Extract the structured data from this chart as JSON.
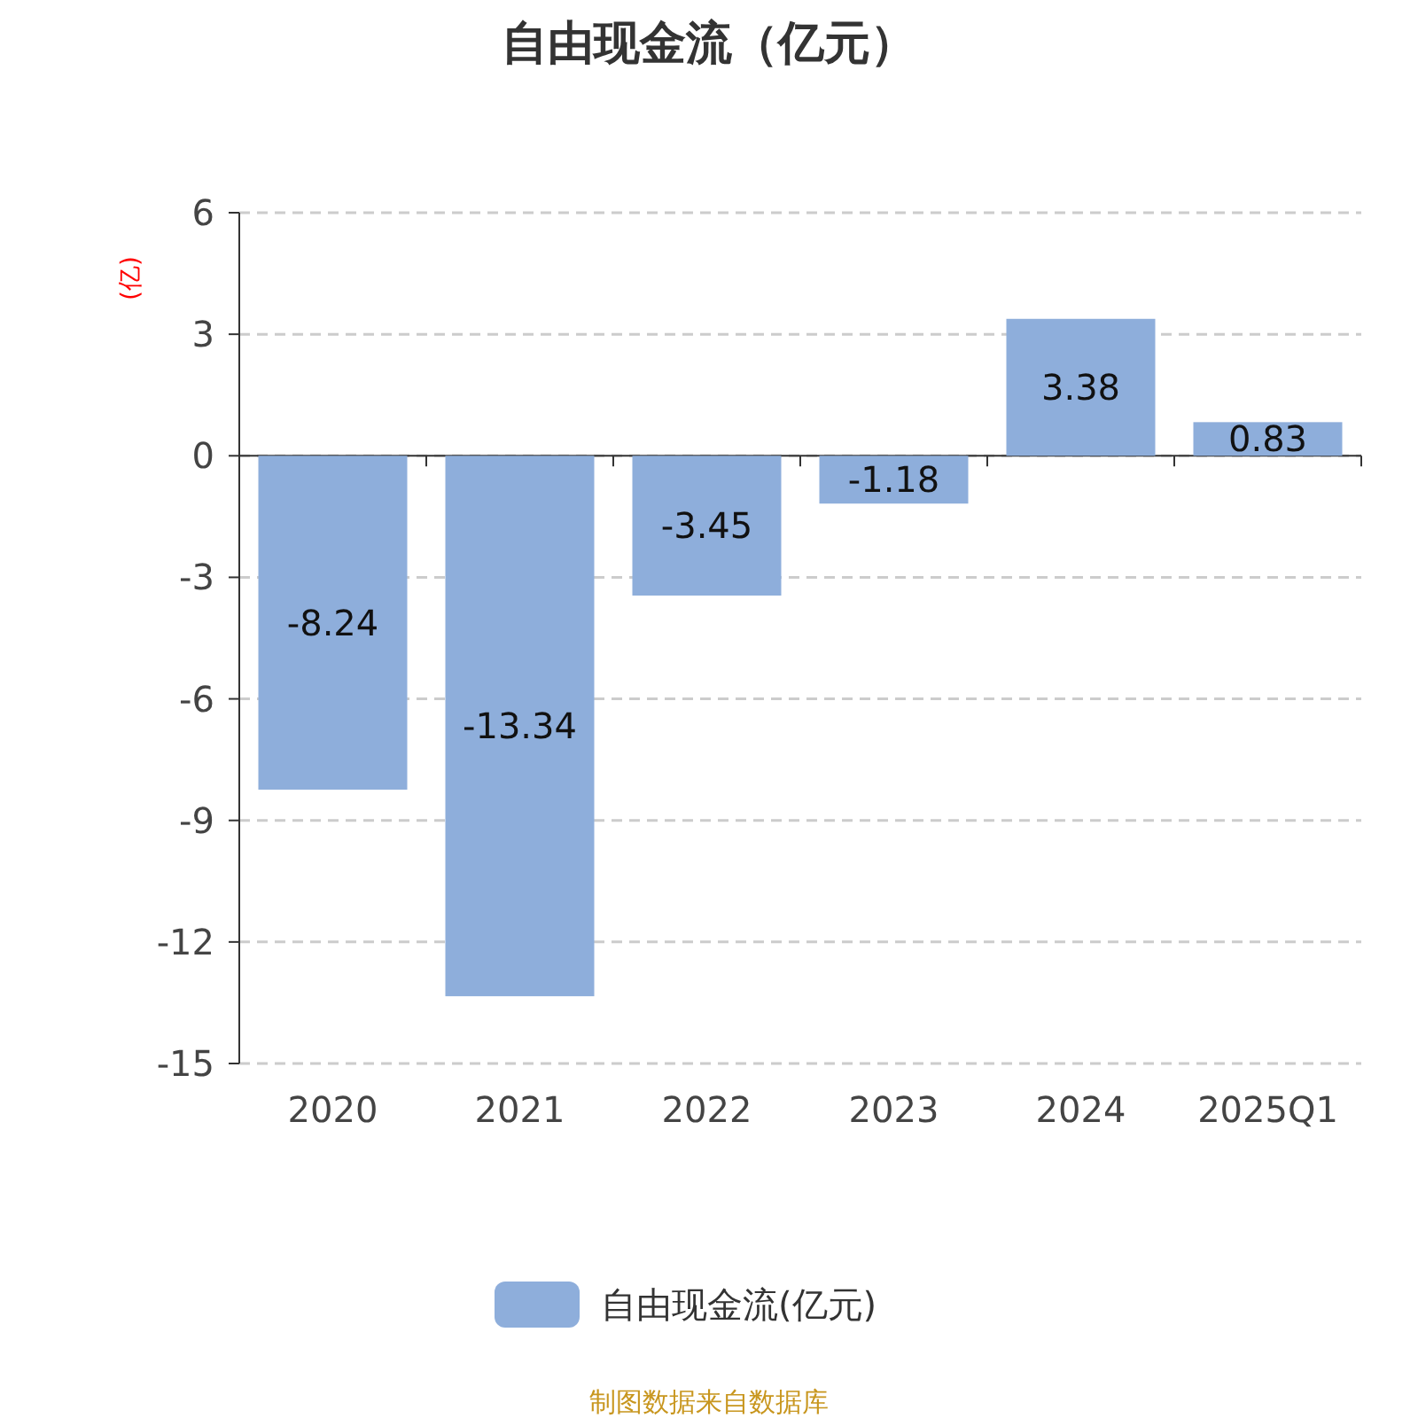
{
  "chart_data": {
    "type": "bar",
    "title": "自由现金流（亿元）",
    "ylabel": "(亿)",
    "categories": [
      "2020",
      "2021",
      "2022",
      "2023",
      "2024",
      "2025Q1"
    ],
    "series": [
      {
        "name": "自由现金流(亿元)",
        "color": "#8eaedb",
        "values": [
          -8.24,
          -13.34,
          -3.45,
          -1.18,
          3.38,
          0.83
        ]
      }
    ],
    "ylim": [
      -15,
      6
    ],
    "yticks": [
      -15,
      -12,
      -9,
      -6,
      -3,
      0,
      3,
      6
    ],
    "grid": "y",
    "legend": "bottom",
    "data_labels": true,
    "annotations": [
      "制图数据来自数据库"
    ]
  }
}
